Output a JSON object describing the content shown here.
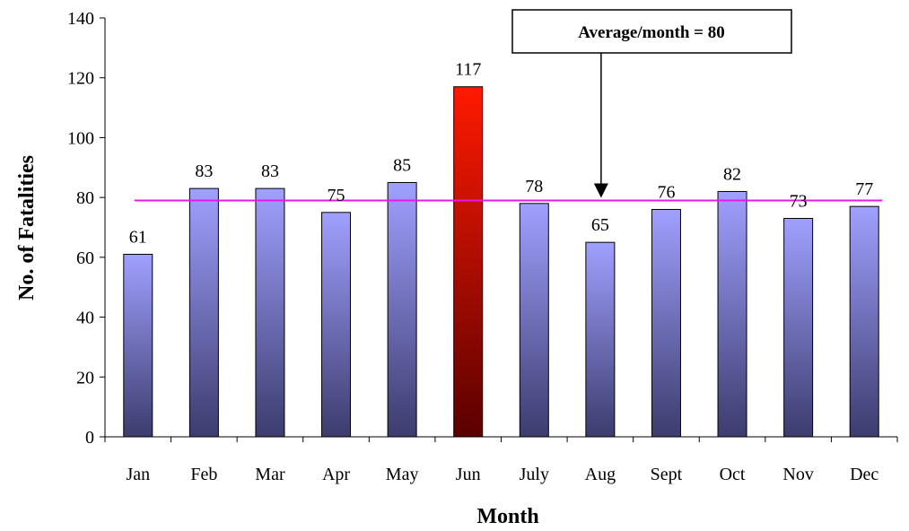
{
  "chart_data": {
    "type": "bar",
    "categories": [
      "Jan",
      "Feb",
      "Mar",
      "Apr",
      "May",
      "Jun",
      "July",
      "Aug",
      "Sept",
      "Oct",
      "Nov",
      "Dec"
    ],
    "values": [
      61,
      83,
      83,
      75,
      85,
      117,
      78,
      65,
      76,
      82,
      73,
      77
    ],
    "data_labels": [
      "61",
      "83",
      "83",
      "75",
      "85",
      "117",
      "78",
      "65",
      "76",
      "82",
      "73",
      "77"
    ],
    "xlabel": "Month",
    "ylabel": "No. of Fatalities",
    "ylim": [
      0,
      140
    ],
    "yticks": [
      0,
      20,
      40,
      60,
      80,
      100,
      120,
      140
    ],
    "ytick_labels": [
      "0",
      "20",
      "40",
      "60",
      "80",
      "100",
      "120",
      "140"
    ],
    "grid": false,
    "highlight_category": "Jun",
    "reference_line": {
      "value": 79,
      "color": "#e619e6"
    },
    "annotation": {
      "text": "Average/month = 80",
      "arrow_points_to": "Aug"
    },
    "colors": {
      "bar_top": "#a0a0ff",
      "bar_bottom": "#3c3c6e",
      "highlight_top": "#ff1a00",
      "highlight_bottom": "#5a0000"
    }
  }
}
